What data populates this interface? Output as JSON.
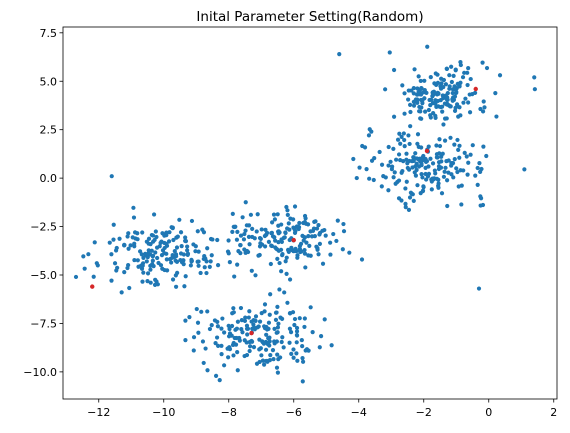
{
  "chart_data": {
    "type": "scatter",
    "title": "Inital Parameter Setting(Random)",
    "xlabel": "",
    "ylabel": "",
    "xlim": [
      -13.1,
      2.1
    ],
    "ylim": [
      -11.4,
      7.8
    ],
    "xticks": [
      -12,
      -10,
      -8,
      -6,
      -4,
      -2,
      0,
      2
    ],
    "yticks": [
      -10.0,
      -7.5,
      -5.0,
      -2.5,
      0.0,
      2.5,
      5.0,
      7.5
    ],
    "xtick_labels": [
      "−12",
      "−10",
      "−8",
      "−6",
      "−4",
      "−2",
      "0",
      "2"
    ],
    "ytick_labels": [
      "−10.0",
      "−7.5",
      "−5.0",
      "−2.5",
      "0.0",
      "2.5",
      "5.0",
      "7.5"
    ],
    "grid": false,
    "colors": {
      "points": "#1f77b4",
      "centers": "#d62728"
    },
    "clusters": [
      {
        "center": [
          -1.5,
          4.3
        ],
        "spread": [
          0.75,
          0.75
        ],
        "count": 170
      },
      {
        "center": [
          -1.9,
          0.6
        ],
        "spread": [
          0.95,
          0.85
        ],
        "count": 190
      },
      {
        "center": [
          -6.3,
          -3.2
        ],
        "spread": [
          0.9,
          0.85
        ],
        "count": 170
      },
      {
        "center": [
          -10.0,
          -3.8
        ],
        "spread": [
          1.0,
          0.8
        ],
        "count": 190
      },
      {
        "center": [
          -7.2,
          -8.2
        ],
        "spread": [
          0.95,
          0.85
        ],
        "count": 190
      }
    ],
    "outliers": [
      [
        1.4,
        5.2
      ],
      [
        -4.6,
        6.4
      ],
      [
        -11.6,
        0.1
      ],
      [
        -12.7,
        -5.1
      ],
      [
        -0.3,
        -5.7
      ],
      [
        -3.9,
        -4.2
      ]
    ],
    "centers": [
      [
        -0.4,
        4.6
      ],
      [
        -1.9,
        1.4
      ],
      [
        -6.0,
        -3.2
      ],
      [
        -12.2,
        -5.6
      ],
      [
        -7.3,
        -8.0
      ]
    ]
  }
}
